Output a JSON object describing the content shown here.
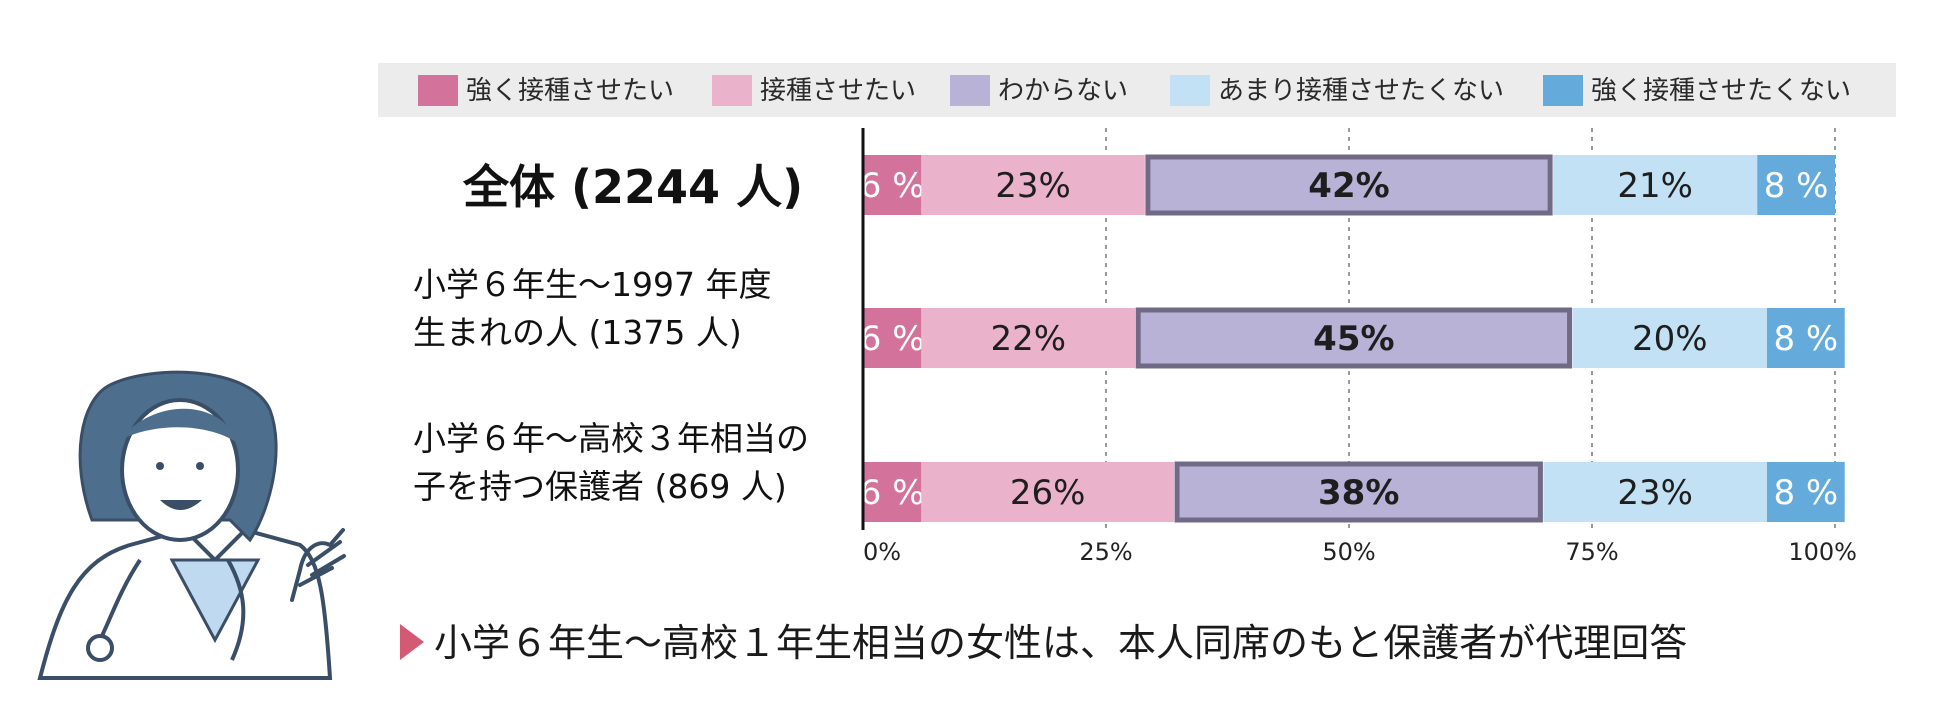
{
  "chart_data": {
    "type": "bar",
    "orientation": "horizontal",
    "stacked": true,
    "percent": true,
    "legend_position": "top",
    "grid": true,
    "xlim": [
      0,
      100
    ],
    "x_ticks": [
      "0%",
      "25%",
      "50%",
      "75%",
      "100%"
    ],
    "categories": [
      {
        "lines": [
          "全体 (2244 人)"
        ]
      },
      {
        "lines": [
          "小学６年生～1997 年度",
          "生まれの人 (1375 人)"
        ]
      },
      {
        "lines": [
          "小学６年～高校３年相当の",
          "子を持つ保護者 (869 人)"
        ]
      }
    ],
    "series": [
      {
        "name": "強く接種させたい",
        "color": "#d3739b",
        "values": [
          6,
          6,
          6
        ],
        "labels": [
          "6 %",
          "6 %",
          "6 %"
        ]
      },
      {
        "name": "接種させたい",
        "color": "#eab3cb",
        "values": [
          23,
          22,
          26
        ],
        "labels": [
          "23%",
          "22%",
          "26%"
        ]
      },
      {
        "name": "わからない",
        "color": "#b8b3d6",
        "values": [
          42,
          45,
          38
        ],
        "labels": [
          "42%",
          "45%",
          "38%"
        ],
        "highlight": true
      },
      {
        "name": "あまり接種させたくない",
        "color": "#c2e1f4",
        "values": [
          21,
          20,
          23
        ],
        "labels": [
          "21%",
          "20%",
          "23%"
        ]
      },
      {
        "name": "強く接種させたくない",
        "color": "#64abdc",
        "values": [
          8,
          8,
          8
        ],
        "labels": [
          "8 %",
          "8 %",
          "8 %"
        ]
      }
    ]
  },
  "footnote": "小学６年生～高校１年生相当の女性は、本人同席のもと保護者が代理回答",
  "colors": {
    "legend_bg": "#ececec",
    "highlight_border": "#716a86",
    "grid": "#9a9a9a",
    "axis": "#111111",
    "footnote_marker": "#d35a72",
    "illustration_stroke": "#3b4e68",
    "illustration_hair": "#4d6e8d",
    "illustration_blouse": "#bfdaf0"
  },
  "illustration": {
    "icon": "doctor-waving-icon"
  }
}
